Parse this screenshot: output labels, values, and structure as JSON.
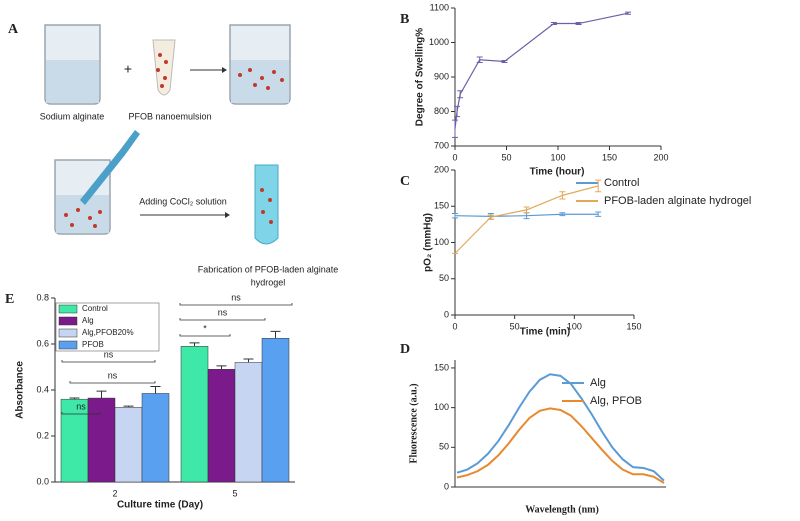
{
  "diagram": {
    "panel": "A",
    "plus": "+",
    "step1_left": "Sodium alginate",
    "step1_mid": "PFOB nanoemulsion",
    "step2_arrow": "Adding CoCl₂ solution",
    "step2_result_line1": "Fabrication of PFOB-laden alginate",
    "step2_result_line2": "hydrogel"
  },
  "chart_data": [
    {
      "type": "line",
      "panel": "B",
      "xlabel": "Time (hour)",
      "ylabel": "Degree of Swelling%",
      "xlim": [
        0,
        200
      ],
      "xticks": [
        0,
        50,
        100,
        150,
        200
      ],
      "ylim": [
        700,
        1100
      ],
      "yticks": [
        700,
        800,
        900,
        1000,
        1100
      ],
      "series": [
        {
          "name": null,
          "color": "#6f5fa8",
          "x": [
            0,
            2,
            5,
            24,
            48,
            96,
            120,
            168
          ],
          "values": [
            750,
            800,
            850,
            950,
            945,
            1055,
            1055,
            1085
          ],
          "errors": [
            25,
            15,
            10,
            8,
            3,
            3,
            3,
            3
          ]
        }
      ]
    },
    {
      "type": "line",
      "panel": "C",
      "xlabel": "Time (min)",
      "ylabel": "pO₂ (mmHg)",
      "xlim": [
        0,
        150
      ],
      "xticks": [
        0,
        50,
        100,
        150
      ],
      "ylim": [
        0,
        200
      ],
      "yticks": [
        0,
        50,
        100,
        150,
        200
      ],
      "series": [
        {
          "name": "Control",
          "color": "#5b9bd5",
          "x": [
            0,
            30,
            60,
            90,
            120
          ],
          "values": [
            137,
            136,
            137,
            139,
            139
          ],
          "errors": [
            3,
            4,
            4,
            2,
            3
          ]
        },
        {
          "name": "PFOB-laden alginate hydrogel",
          "color": "#e3a857",
          "x": [
            0,
            30,
            60,
            90,
            120
          ],
          "values": [
            85,
            135,
            145,
            165,
            178
          ],
          "errors": [
            0,
            3,
            4,
            5,
            8
          ]
        }
      ]
    },
    {
      "type": "line",
      "panel": "D",
      "xlabel": "Wavelength (nm)",
      "ylabel": "Fluorescence (a.u.)",
      "ylim": [
        0,
        160
      ],
      "yticks": [
        0,
        50,
        100,
        150
      ],
      "series": [
        {
          "name": "Alg",
          "color": "#5b9bd5",
          "values": [
            18,
            22,
            30,
            42,
            58,
            78,
            100,
            120,
            135,
            142,
            140,
            130,
            112,
            92,
            70,
            50,
            35,
            25,
            24,
            20,
            8
          ]
        },
        {
          "name": "Alg, PFOB",
          "color": "#e8892f",
          "values": [
            12,
            15,
            20,
            28,
            40,
            55,
            72,
            87,
            96,
            99,
            97,
            90,
            77,
            62,
            47,
            33,
            22,
            16,
            16,
            13,
            5
          ]
        }
      ]
    },
    {
      "type": "bar",
      "panel": "E",
      "xlabel": "Culture time (Day)",
      "ylabel": "Absorbance",
      "categories": [
        "2",
        "5"
      ],
      "ylim": [
        0,
        0.8
      ],
      "yticks": [
        {
          "value": 0,
          "label": "0.0"
        },
        0.2,
        0.4,
        0.6,
        0.8
      ],
      "series": [
        {
          "name": "Control",
          "color": "#3ee8a6",
          "values": [
            0.36,
            0.59
          ],
          "errors": [
            0.005,
            0.015
          ]
        },
        {
          "name": "Alg",
          "color": "#7b1a8a",
          "values": [
            0.365,
            0.49
          ],
          "errors": [
            0.03,
            0.015
          ]
        },
        {
          "name": "Alg,PFOB20%",
          "color": "#c6d6f2",
          "values": [
            0.325,
            0.52
          ],
          "errors": [
            0.005,
            0.015
          ]
        },
        {
          "name": "PFOB",
          "color": "#5aa0f0",
          "values": [
            0.385,
            0.625
          ],
          "errors": [
            0.03,
            0.03
          ]
        }
      ],
      "annotations": [
        "ns",
        "ns",
        "ns",
        "ns",
        "ns",
        "*"
      ]
    }
  ]
}
